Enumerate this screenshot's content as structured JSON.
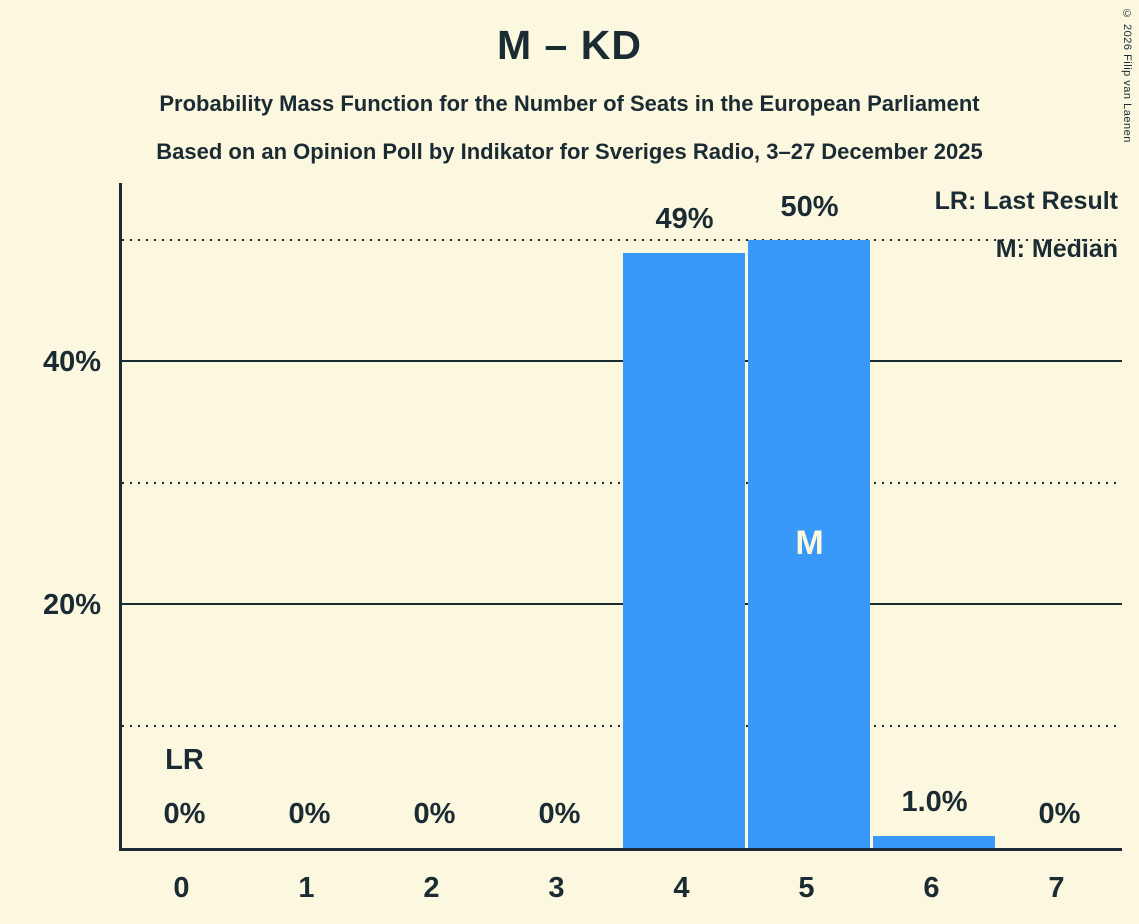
{
  "header": {
    "title": "M – KD",
    "subtitle1": "Probability Mass Function for the Number of Seats in the European Parliament",
    "subtitle2": "Based on an Opinion Poll by Indikator for Sveriges Radio, 3–27 December 2025"
  },
  "legend": {
    "lr_label": "LR: Last Result",
    "m_label": "M: Median"
  },
  "copyright": "© 2026 Filip van Laenen",
  "colors": {
    "background": "#FCF7DF",
    "bar": "#3899F8",
    "text": "#1A2B33",
    "median_text": "#FCF7DF"
  },
  "chart_data": {
    "type": "bar",
    "title": "M – KD",
    "categories": [
      "0",
      "1",
      "2",
      "3",
      "4",
      "5",
      "6",
      "7"
    ],
    "values": [
      0,
      0,
      0,
      0,
      49,
      50,
      1.0,
      0
    ],
    "bar_labels": [
      "0%",
      "0%",
      "0%",
      "0%",
      "49%",
      "50%",
      "1.0%",
      "0%"
    ],
    "xlabel": "",
    "ylabel": "",
    "ylim": [
      0,
      55
    ],
    "y_axis_ticks": [
      {
        "value": 20,
        "label": "20%"
      },
      {
        "value": 40,
        "label": "40%"
      }
    ],
    "gridlines": {
      "solid": [
        20,
        40
      ],
      "dotted": [
        10,
        30,
        50
      ]
    },
    "legend_position": "top-right",
    "annotations": {
      "last_result": {
        "category_index": 0,
        "label": "LR"
      },
      "median": {
        "category_index": 5,
        "label": "M"
      }
    }
  }
}
